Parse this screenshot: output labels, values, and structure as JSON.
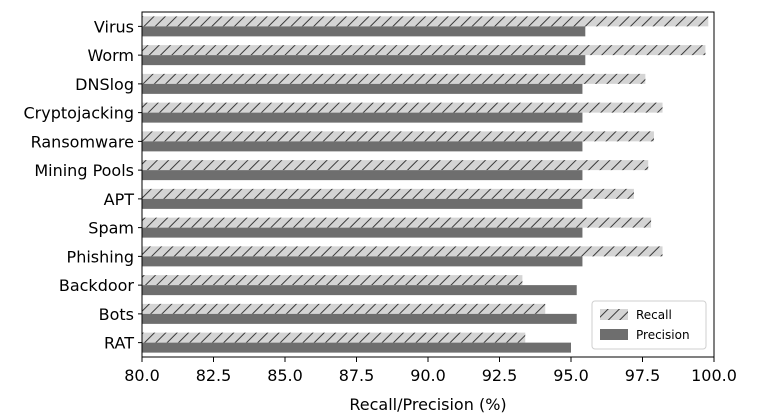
{
  "chart_data": {
    "type": "bar",
    "orientation": "horizontal",
    "categories": [
      "Virus",
      "Worm",
      "DNSlog",
      "Cryptojacking",
      "Ransomware",
      "Mining Pools",
      "APT",
      "Spam",
      "Phishing",
      "Backdoor",
      "Bots",
      "RAT"
    ],
    "series": [
      {
        "name": "Recall",
        "style": "hatched",
        "color": "#d0d0d0",
        "values": [
          99.8,
          99.7,
          97.6,
          98.2,
          97.9,
          97.7,
          97.2,
          97.8,
          98.2,
          93.3,
          94.1,
          93.4
        ]
      },
      {
        "name": "Precision",
        "style": "solid",
        "color": "#6e6e6e",
        "values": [
          95.5,
          95.5,
          95.4,
          95.4,
          95.4,
          95.4,
          95.4,
          95.4,
          95.4,
          95.2,
          95.2,
          95.0
        ]
      }
    ],
    "xlabel": "Recall/Precision (%)",
    "ylabel": "",
    "xlim": [
      80.0,
      100.0
    ],
    "xticks": [
      "80.0",
      "82.5",
      "85.0",
      "87.5",
      "90.0",
      "92.5",
      "95.0",
      "97.5",
      "100.0"
    ],
    "grid": false,
    "legend_position": "bottom-right"
  }
}
